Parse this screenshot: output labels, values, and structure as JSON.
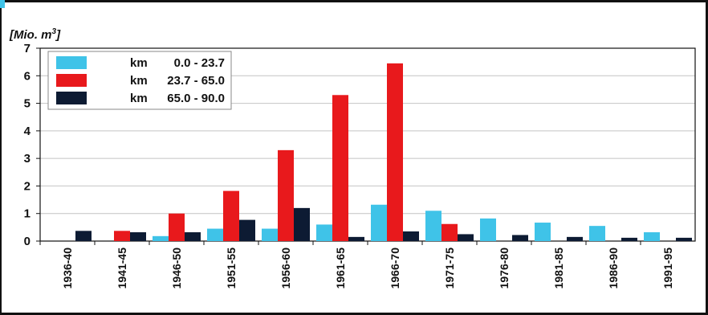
{
  "chart_data": {
    "type": "bar",
    "title": "",
    "ylabel_prefix": "[Mio. m",
    "ylabel_sup": "3",
    "ylabel_suffix": "]",
    "xlabel": "",
    "ylim": [
      0,
      7
    ],
    "yticks": [
      "0",
      "1",
      "2",
      "3",
      "4",
      "5",
      "6",
      "7"
    ],
    "categories": [
      "1936-40",
      "1941-45",
      "1946-50",
      "1951-55",
      "1956-60",
      "1961-65",
      "1966-70",
      "1971-75",
      "1976-80",
      "1981-85",
      "1986-90",
      "1991-95"
    ],
    "series": [
      {
        "unit": "km",
        "name": "0.0 - 23.7",
        "color": "#3fc3e8",
        "values": [
          0,
          0,
          0.18,
          0.45,
          0.45,
          0.6,
          1.32,
          1.1,
          0.82,
          0.67,
          0.55,
          0.32
        ]
      },
      {
        "unit": "km",
        "name": "23.7 - 65.0",
        "color": "#e8191c",
        "values": [
          0,
          0.37,
          1.0,
          1.82,
          3.3,
          5.3,
          6.45,
          0.62,
          0,
          0,
          0,
          0
        ]
      },
      {
        "unit": "km",
        "name": "65.0 - 90.0",
        "color": "#0d1b33",
        "values": [
          0.37,
          0.32,
          0.32,
          0.77,
          1.2,
          0.15,
          0.35,
          0.25,
          0.22,
          0.15,
          0.12,
          0.12
        ]
      }
    ],
    "grid": true,
    "legend_position": "top-left"
  }
}
